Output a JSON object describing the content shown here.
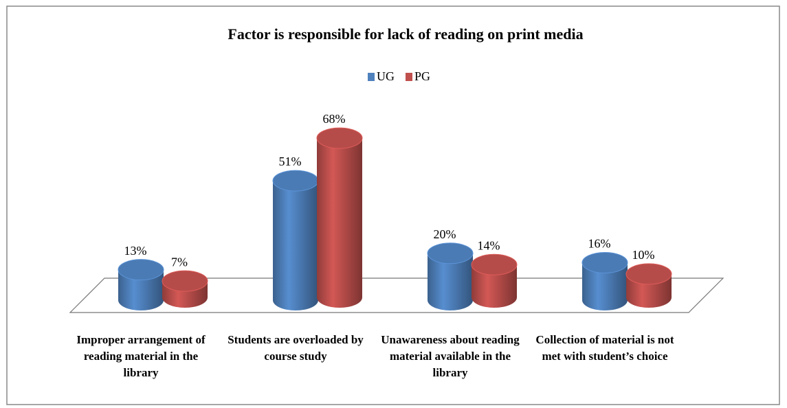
{
  "chart_data": {
    "type": "bar3d",
    "title": "Factor is responsible for lack of reading on print media",
    "categories": [
      "Improper arrangement of reading material in the library",
      "Students are overloaded by course study",
      "Unawareness about reading material available in the library",
      "Collection of material is not met with student’s choice"
    ],
    "series": [
      {
        "name": "UG",
        "color": "#4f81bd",
        "values": [
          13,
          51,
          20,
          16
        ],
        "value_labels": [
          "13%",
          "51%",
          "20%",
          "16%"
        ]
      },
      {
        "name": "PG",
        "color": "#c0504d",
        "values": [
          7,
          68,
          14,
          10
        ],
        "value_labels": [
          "7%",
          "68%",
          "14%",
          "10%"
        ]
      }
    ],
    "legend": "top"
  }
}
